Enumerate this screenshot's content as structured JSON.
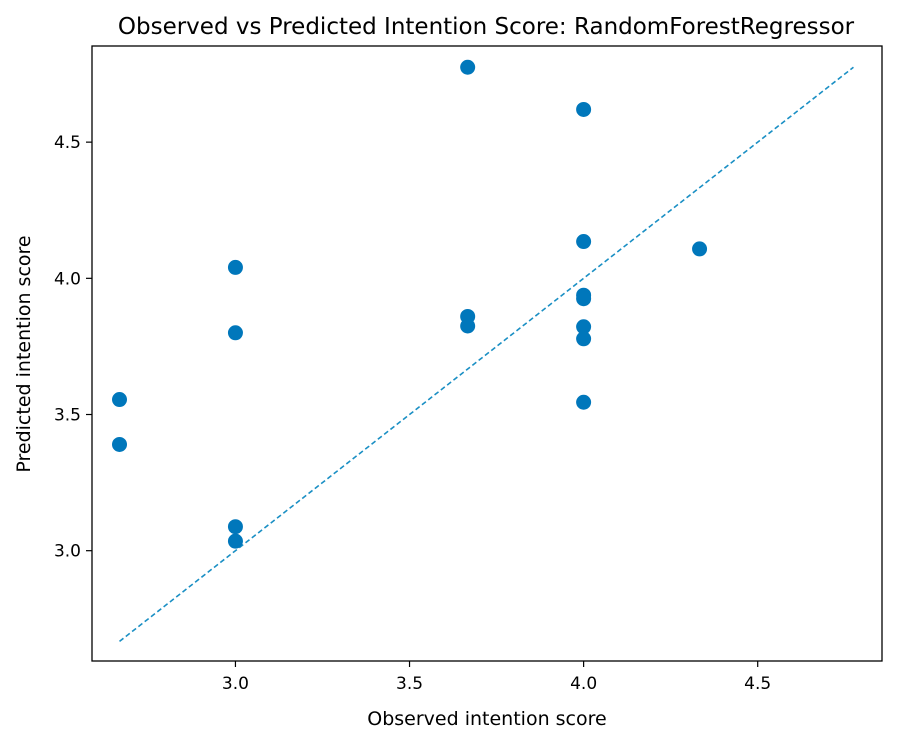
{
  "chart_data": {
    "type": "scatter",
    "title": "Observed vs Predicted Intention Score: RandomForestRegressor",
    "xlabel": "Observed intention score",
    "ylabel": "Predicted intention score",
    "xlim": [
      2.588,
      4.857
    ],
    "ylim": [
      2.595,
      4.853
    ],
    "xticks": [
      3.0,
      3.5,
      4.0,
      4.5
    ],
    "xtick_labels": [
      "3.0",
      "3.5",
      "4.0",
      "4.5"
    ],
    "yticks": [
      3.0,
      3.5,
      4.0,
      4.5
    ],
    "ytick_labels": [
      "3.0",
      "3.5",
      "4.0",
      "4.5"
    ],
    "grid": false,
    "legend": "none",
    "point_color": "#0077bb",
    "line_color": "#1a8fc4",
    "points": [
      {
        "x": 2.667,
        "y": 3.555
      },
      {
        "x": 2.667,
        "y": 3.39
      },
      {
        "x": 3.0,
        "y": 4.04
      },
      {
        "x": 3.0,
        "y": 3.8
      },
      {
        "x": 3.0,
        "y": 3.088
      },
      {
        "x": 3.0,
        "y": 3.035
      },
      {
        "x": 3.667,
        "y": 4.775
      },
      {
        "x": 3.667,
        "y": 3.86
      },
      {
        "x": 3.667,
        "y": 3.825
      },
      {
        "x": 4.0,
        "y": 4.62
      },
      {
        "x": 4.0,
        "y": 4.135
      },
      {
        "x": 4.0,
        "y": 3.938
      },
      {
        "x": 4.0,
        "y": 3.925
      },
      {
        "x": 4.0,
        "y": 3.822
      },
      {
        "x": 4.0,
        "y": 3.778
      },
      {
        "x": 4.0,
        "y": 3.545
      },
      {
        "x": 4.333,
        "y": 4.108
      }
    ],
    "reference_line": {
      "style": "dashed",
      "x": [
        2.667,
        4.775
      ],
      "y": [
        2.667,
        4.775
      ]
    }
  }
}
